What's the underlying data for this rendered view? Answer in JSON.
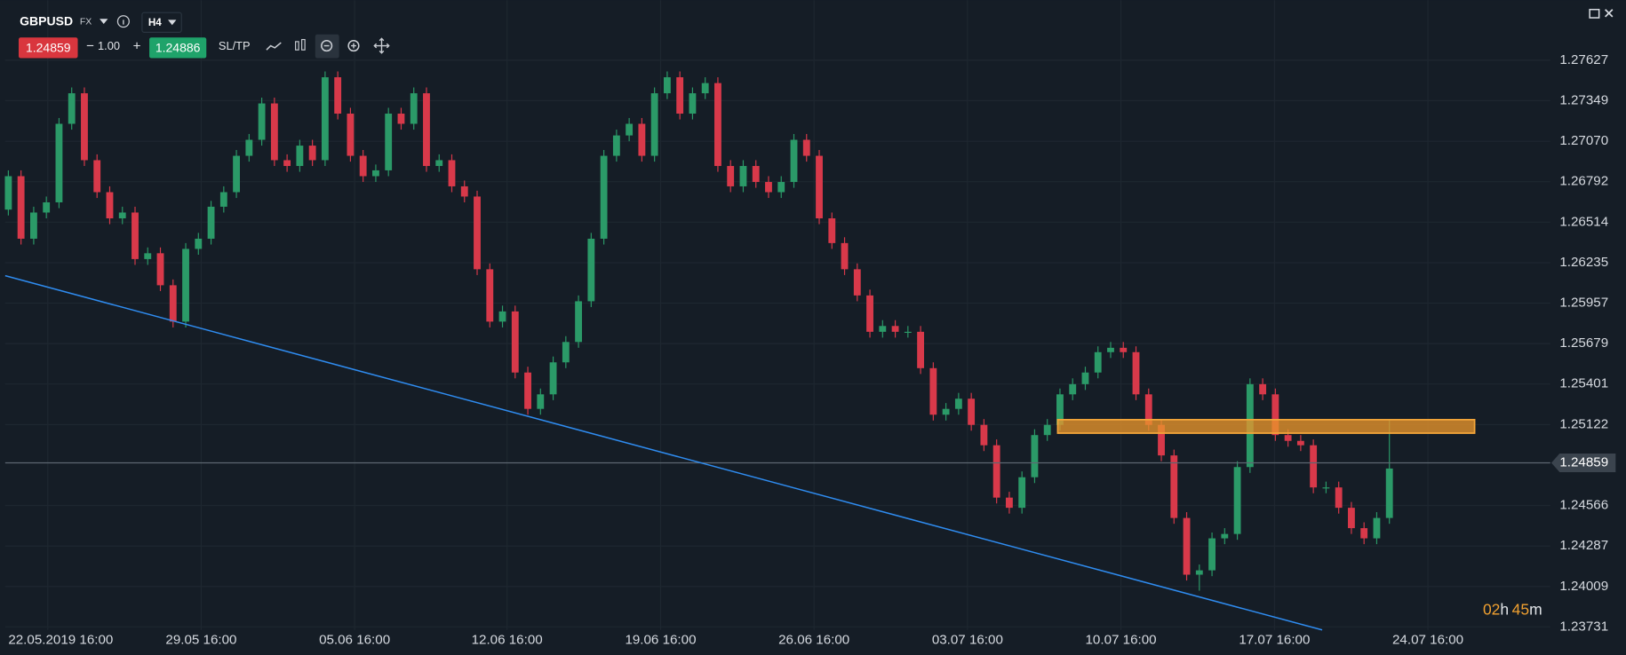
{
  "toolbar": {
    "symbol": "GBPUSD",
    "market": "FX",
    "timeframe": "H4",
    "bid": "1.24859",
    "minus": "−",
    "lot": "1.00",
    "plus": "+",
    "ask": "1.24886",
    "sltp": "SL/TP"
  },
  "countdown": [
    "02",
    "h",
    "45",
    "m"
  ],
  "chart_data": {
    "type": "candlestick",
    "up_color": "#2b9a68",
    "down_color": "#d8394a",
    "grid": true,
    "current_price": 1.24859,
    "xlim": [
      -0.25,
      121.7
    ],
    "ylim": [
      1.2371,
      1.2804
    ],
    "xticks": [
      {
        "value": 3.11,
        "label": "22.05.2019 16:00"
      },
      {
        "value": 15.22,
        "label": "29.05 16:00"
      },
      {
        "value": 27.33,
        "label": "05.06 16:00"
      },
      {
        "value": 39.36,
        "label": "12.06 16:00"
      },
      {
        "value": 51.48,
        "label": "19.06 16:00"
      },
      {
        "value": 63.59,
        "label": "26.06 16:00"
      },
      {
        "value": 75.7,
        "label": "03.07 16:00"
      },
      {
        "value": 87.81,
        "label": "10.07 16:00"
      },
      {
        "value": 99.93,
        "label": "17.07 16:00"
      },
      {
        "value": 112.04,
        "label": "24.07 16:00"
      }
    ],
    "yticks": [
      1.27627,
      1.27349,
      {
        "value": 1.2707,
        "label": "1.27070"
      },
      1.26792,
      1.26514,
      1.26235,
      1.25957,
      1.25679,
      1.25401,
      1.25122,
      1.24566,
      1.24287,
      1.24009,
      1.23731
    ],
    "x": [
      0,
      1,
      2,
      3,
      4,
      5,
      6,
      7,
      8,
      9,
      10,
      11,
      12,
      13,
      14,
      15,
      16,
      17,
      18,
      19,
      20,
      21,
      22,
      23,
      24,
      25,
      26,
      27,
      28,
      29,
      30,
      31,
      32,
      33,
      34,
      35,
      36,
      37,
      38,
      39,
      40,
      41,
      42,
      43,
      44,
      45,
      46,
      47,
      48,
      49,
      50,
      51,
      52,
      53,
      54,
      55,
      56,
      57,
      58,
      59,
      60,
      61,
      62,
      63,
      64,
      65,
      66,
      67,
      68,
      69,
      70,
      71,
      72,
      73,
      74,
      75,
      76,
      77,
      78,
      79,
      80,
      81,
      82,
      83,
      84,
      85,
      86,
      87,
      88,
      89,
      90,
      91,
      92,
      93,
      94,
      95,
      96,
      97,
      98,
      99,
      100,
      101,
      102,
      103,
      104,
      105,
      106,
      107,
      108,
      109
    ],
    "open": [
      1.266,
      1.2683,
      1.264,
      1.2658,
      1.2665,
      1.2719,
      1.274,
      1.2694,
      1.2672,
      1.2654,
      1.2658,
      1.2626,
      1.263,
      1.2608,
      1.2583,
      1.2633,
      1.264,
      1.2662,
      1.2672,
      1.2697,
      1.2708,
      1.2733,
      1.2694,
      1.269,
      1.2704,
      1.2694,
      1.2751,
      1.2726,
      1.2697,
      1.2683,
      1.2687,
      1.2726,
      1.2719,
      1.274,
      1.269,
      1.2694,
      1.2676,
      1.2669,
      1.2619,
      1.2583,
      1.259,
      1.2548,
      1.2523,
      1.2533,
      1.2555,
      1.2569,
      1.2597,
      1.264,
      1.2697,
      1.2711,
      1.2719,
      1.2697,
      1.274,
      1.2751,
      1.2726,
      1.274,
      1.2747,
      1.269,
      1.2676,
      1.269,
      1.2679,
      1.2672,
      1.2679,
      1.2708,
      1.2697,
      1.2654,
      1.2637,
      1.2619,
      1.2601,
      1.2576,
      1.258,
      1.2576,
      1.2576,
      1.2551,
      1.2519,
      1.2523,
      1.253,
      1.2512,
      1.2498,
      1.2462,
      1.2455,
      1.2476,
      1.2505,
      1.2512,
      1.2533,
      1.254,
      1.2548,
      1.2562,
      1.2565,
      1.2562,
      1.2533,
      1.2512,
      1.2491,
      1.2448,
      1.2409,
      1.2412,
      1.2434,
      1.2437,
      1.2483,
      1.254,
      1.2533,
      1.2505,
      1.2501,
      1.2498,
      1.2469,
      1.2469,
      1.2455,
      1.2441,
      1.2434,
      1.2448
    ],
    "high": [
      1.2687,
      1.2687,
      1.2662,
      1.2669,
      1.2723,
      1.2744,
      1.2744,
      1.2698,
      1.2676,
      1.2662,
      1.2662,
      1.2634,
      1.2634,
      1.2612,
      1.2637,
      1.2644,
      1.2666,
      1.2676,
      1.2701,
      1.2712,
      1.2737,
      1.2737,
      1.2698,
      1.2708,
      1.2708,
      1.2755,
      1.2755,
      1.273,
      1.2701,
      1.2691,
      1.273,
      1.273,
      1.2744,
      1.2744,
      1.2698,
      1.2698,
      1.268,
      1.2673,
      1.2623,
      1.2594,
      1.2594,
      1.2552,
      1.2537,
      1.2559,
      1.2573,
      1.2601,
      1.2644,
      1.2701,
      1.2715,
      1.2723,
      1.2723,
      1.2744,
      1.2755,
      1.2755,
      1.2744,
      1.2751,
      1.2751,
      1.2694,
      1.2694,
      1.2694,
      1.2683,
      1.2683,
      1.2712,
      1.2712,
      1.2701,
      1.2658,
      1.2641,
      1.2623,
      1.2605,
      1.2584,
      1.2584,
      1.258,
      1.258,
      1.2555,
      1.2527,
      1.2534,
      1.2534,
      1.2516,
      1.2502,
      1.2466,
      1.248,
      1.2509,
      1.2516,
      1.2537,
      1.2544,
      1.2552,
      1.2566,
      1.2569,
      1.2569,
      1.2566,
      1.2537,
      1.2516,
      1.2495,
      1.2452,
      1.2416,
      1.2438,
      1.2441,
      1.2487,
      1.2544,
      1.2544,
      1.2537,
      1.2509,
      1.2505,
      1.2502,
      1.2473,
      1.2473,
      1.2459,
      1.2445,
      1.2452,
      1.2516
    ],
    "low": [
      1.2656,
      1.2636,
      1.2636,
      1.2654,
      1.2661,
      1.2715,
      1.269,
      1.2668,
      1.265,
      1.265,
      1.2622,
      1.2622,
      1.2604,
      1.2579,
      1.2579,
      1.2629,
      1.2636,
      1.2658,
      1.2668,
      1.2693,
      1.2704,
      1.269,
      1.2686,
      1.2686,
      1.269,
      1.269,
      1.2722,
      1.2693,
      1.2679,
      1.2679,
      1.2683,
      1.2715,
      1.2715,
      1.2686,
      1.2686,
      1.2672,
      1.2665,
      1.2615,
      1.2579,
      1.2579,
      1.2544,
      1.2519,
      1.2519,
      1.2529,
      1.2551,
      1.2565,
      1.2593,
      1.2636,
      1.2693,
      1.2707,
      1.2693,
      1.2693,
      1.2736,
      1.2722,
      1.2722,
      1.2736,
      1.2686,
      1.2672,
      1.2672,
      1.2675,
      1.2668,
      1.2668,
      1.2675,
      1.2693,
      1.265,
      1.2633,
      1.2615,
      1.2597,
      1.2572,
      1.2572,
      1.2572,
      1.2572,
      1.2547,
      1.2515,
      1.2515,
      1.2519,
      1.2508,
      1.2494,
      1.2458,
      1.2451,
      1.2451,
      1.2472,
      1.2501,
      1.2508,
      1.2529,
      1.2536,
      1.2544,
      1.2558,
      1.2558,
      1.2529,
      1.2508,
      1.2487,
      1.2444,
      1.2405,
      1.2398,
      1.2408,
      1.243,
      1.2433,
      1.2479,
      1.2529,
      1.2501,
      1.2497,
      1.2494,
      1.2465,
      1.2465,
      1.2451,
      1.2437,
      1.243,
      1.243,
      1.2444
    ],
    "close": [
      1.2683,
      1.264,
      1.2658,
      1.2665,
      1.2719,
      1.274,
      1.2694,
      1.2672,
      1.2654,
      1.2658,
      1.2626,
      1.263,
      1.2608,
      1.2583,
      1.2633,
      1.264,
      1.2662,
      1.2672,
      1.2697,
      1.2708,
      1.2733,
      1.2694,
      1.269,
      1.2704,
      1.2694,
      1.2751,
      1.2726,
      1.2697,
      1.2683,
      1.2687,
      1.2726,
      1.2719,
      1.274,
      1.269,
      1.2694,
      1.2676,
      1.2669,
      1.2619,
      1.2583,
      1.259,
      1.2548,
      1.2523,
      1.2533,
      1.2555,
      1.2569,
      1.2597,
      1.264,
      1.2697,
      1.2711,
      1.2719,
      1.2697,
      1.274,
      1.2751,
      1.2726,
      1.274,
      1.2747,
      1.269,
      1.2676,
      1.269,
      1.2679,
      1.2672,
      1.2679,
      1.2708,
      1.2697,
      1.2654,
      1.2637,
      1.2619,
      1.2601,
      1.2576,
      1.258,
      1.2576,
      1.2576,
      1.2551,
      1.2519,
      1.2523,
      1.253,
      1.2512,
      1.2498,
      1.2462,
      1.2455,
      1.2476,
      1.2505,
      1.2512,
      1.2533,
      1.254,
      1.2548,
      1.2562,
      1.2565,
      1.2562,
      1.2533,
      1.2512,
      1.2491,
      1.2448,
      1.2409,
      1.2412,
      1.2434,
      1.2437,
      1.2483,
      1.254,
      1.2533,
      1.2505,
      1.2501,
      1.2498,
      1.2469,
      1.2469,
      1.2455,
      1.2441,
      1.2434,
      1.2448,
      1.2482
    ]
  }
}
